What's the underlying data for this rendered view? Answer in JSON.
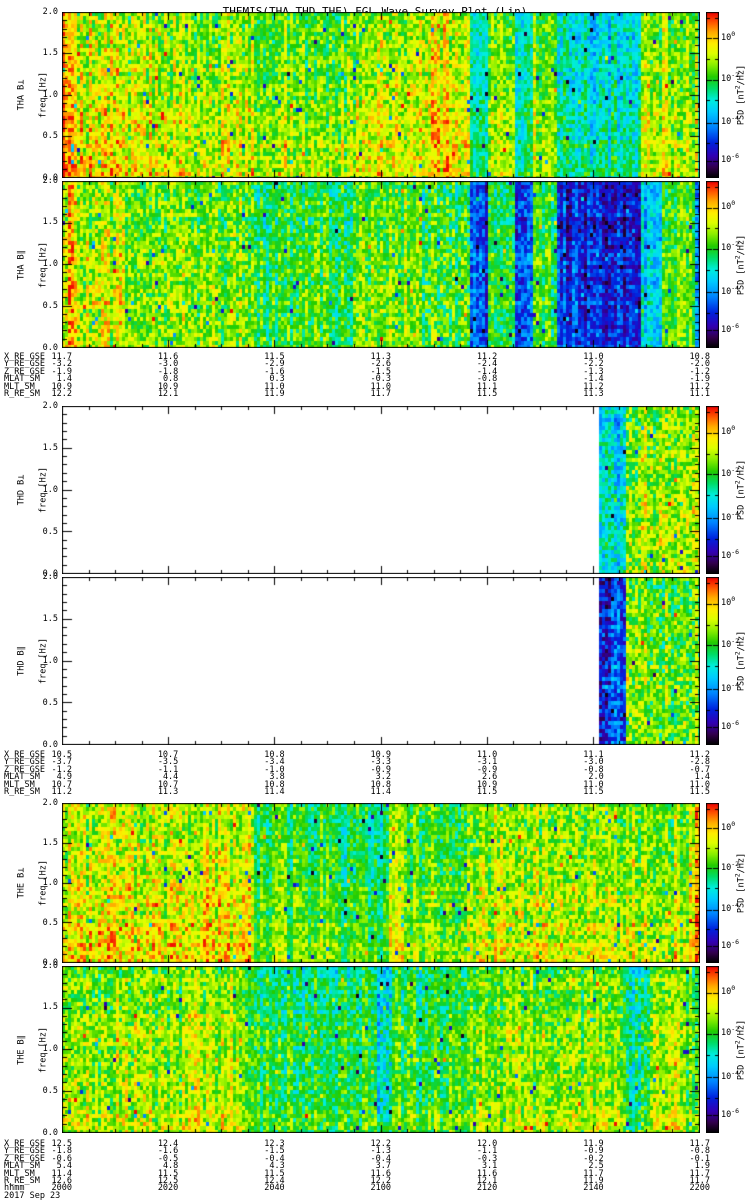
{
  "title": "THEMIS(THA,THD,THE) FGL Wave Survey Plot (Lin)",
  "freq_axis": {
    "label": "freq [Hz]",
    "tick_labels": [
      "2.0",
      "1.5",
      "1.0",
      "0.5",
      "0.0"
    ]
  },
  "colorbar": {
    "label_prefix": "PSD [nT",
    "label_sup": "2",
    "label_suffix": "/Hz]",
    "ticks": [
      {
        "base": "10",
        "exp": "0",
        "frac": 0.16
      },
      {
        "base": "10",
        "exp": "-2",
        "frac": 0.41
      },
      {
        "base": "10",
        "exp": "-4",
        "frac": 0.67
      },
      {
        "base": "10",
        "exp": "-6",
        "frac": 0.9
      }
    ]
  },
  "colors": {
    "background": "#ffffff",
    "frame": "#000000",
    "colormap_stops": [
      [
        0.0,
        "#000000"
      ],
      [
        0.06,
        "#32004b"
      ],
      [
        0.13,
        "#3200b4"
      ],
      [
        0.21,
        "#0022dd"
      ],
      [
        0.3,
        "#0080ff"
      ],
      [
        0.4,
        "#00ccff"
      ],
      [
        0.47,
        "#00eedd"
      ],
      [
        0.54,
        "#00dd66"
      ],
      [
        0.61,
        "#22cc00"
      ],
      [
        0.68,
        "#88ee00"
      ],
      [
        0.75,
        "#ddff00"
      ],
      [
        0.81,
        "#ffee00"
      ],
      [
        0.88,
        "#ffaa00"
      ],
      [
        0.94,
        "#ff5500"
      ],
      [
        1.0,
        "#ee0000"
      ]
    ]
  },
  "chart_data": {
    "type": "heatmap",
    "title": "THEMIS(THA,THD,THE) FGL Wave Survey Plot (Lin)",
    "ylabel": "freq [Hz]",
    "ylim": [
      0.0,
      2.0
    ],
    "yticks": [
      "0.0",
      "0.5",
      "1.0",
      "1.5",
      "2.0"
    ],
    "grid": false,
    "colorbar": {
      "label": "PSD [nT2/Hz]",
      "ticks": [
        "10^0",
        "10^-2",
        "10^-4",
        "10^-6"
      ],
      "orientation": "vertical-right"
    },
    "panels": [
      {
        "name": "THA B⊥",
        "features": "broadband yellow-green PSD ~10^-1 nT2/Hz over most of interval; red enhancements at start; cyan dropout bands near 2125, 2135 and a wide cyan low-PSD block 2130-2150 UT"
      },
      {
        "name": "THA B∥",
        "features": "similar structure with much deeper dropouts: dark-blue bands near 2125, 2135 and a deep blue block ~10^-5 nT2/Hz 2130-2155 UT"
      },
      {
        "name": "THD B⊥",
        "features": "no data (white) before ~2140 UT; cyan low-PSD column at data start, then yellow-green to orange PSD to 2200 UT"
      },
      {
        "name": "THD B∥",
        "features": "no data (white) before ~2140 UT; dark-blue low-PSD column at data start, then yellow-green PSD to 2200 UT"
      },
      {
        "name": "THE B⊥",
        "features": "high yellow-orange PSD with red streaks at start; greener/cyan interval 2040-2100 UT; orange-red enhancement at right edge"
      },
      {
        "name": "THE B∥",
        "features": "moderate yellow-green PSD; green-cyan interval 2040-2100 UT with brief blue streaks; blue dropouts near 2140 UT"
      }
    ],
    "x_axis": {
      "hhmm_ticks": [
        "2000",
        "2020",
        "2040",
        "2100",
        "2120",
        "2140",
        "2200"
      ],
      "date": "2017 Sep 23"
    },
    "ephemeris_blocks": [
      {
        "applies_to": [
          "THA B⊥",
          "THA B∥"
        ],
        "rows": [
          {
            "label": "X_RE_GSE",
            "values": [
              "11.7",
              "11.6",
              "11.5",
              "11.3",
              "11.2",
              "11.0",
              "10.8"
            ]
          },
          {
            "label": "Y_RE_GSE",
            "values": [
              "-3.2",
              "-3.0",
              "-2.9",
              "-2.6",
              "-2.4",
              "-2.2",
              "-2.0"
            ]
          },
          {
            "label": "Z_RE_GSE",
            "values": [
              "-1.9",
              "-1.8",
              "-1.6",
              "-1.5",
              "-1.4",
              "-1.3",
              "-1.2"
            ]
          },
          {
            "label": "MLAT_SM",
            "values": [
              "1.4",
              "0.8",
              "0.3",
              "-0.3",
              "-0.8",
              "-1.4",
              "-1.9"
            ]
          },
          {
            "label": "MLT_SM",
            "values": [
              "10.9",
              "10.9",
              "11.0",
              "11.0",
              "11.1",
              "11.2",
              "11.2"
            ]
          },
          {
            "label": "R_RE_SM",
            "values": [
              "12.2",
              "12.1",
              "11.9",
              "11.7",
              "11.5",
              "11.3",
              "11.1"
            ]
          }
        ]
      },
      {
        "applies_to": [
          "THD B⊥",
          "THD B∥"
        ],
        "rows": [
          {
            "label": "X_RE_GSE",
            "values": [
              "10.5",
              "10.7",
              "10.8",
              "10.9",
              "11.0",
              "11.1",
              "11.2"
            ]
          },
          {
            "label": "Y_RE_GSE",
            "values": [
              "-3.7",
              "-3.5",
              "-3.4",
              "-3.3",
              "-3.1",
              "-3.0",
              "-2.8"
            ]
          },
          {
            "label": "Z_RE_GSE",
            "values": [
              "-1.2",
              "-1.1",
              "-1.0",
              "-0.9",
              "-0.9",
              "-0.8",
              "-0.7"
            ]
          },
          {
            "label": "MLAT_SM",
            "values": [
              "4.9",
              "4.4",
              "3.8",
              "3.2",
              "2.6",
              "2.0",
              "1.4"
            ]
          },
          {
            "label": "MLT_SM",
            "values": [
              "10.7",
              "10.7",
              "10.8",
              "10.8",
              "10.9",
              "11.0",
              "11.0"
            ]
          },
          {
            "label": "R_RE_SM",
            "values": [
              "11.2",
              "11.3",
              "11.4",
              "11.4",
              "11.5",
              "11.5",
              "11.5"
            ]
          }
        ]
      },
      {
        "applies_to": [
          "THE B⊥",
          "THE B∥"
        ],
        "rows": [
          {
            "label": "X_RE_GSE",
            "values": [
              "12.5",
              "12.4",
              "12.3",
              "12.2",
              "12.0",
              "11.9",
              "11.7"
            ]
          },
          {
            "label": "Y_RE_GSE",
            "values": [
              "-1.8",
              "-1.6",
              "-1.5",
              "-1.3",
              "-1.1",
              "-0.9",
              "-0.8"
            ]
          },
          {
            "label": "Z_RE_GSE",
            "values": [
              "-0.6",
              "-0.5",
              "-0.4",
              "-0.4",
              "-0.3",
              "-0.2",
              "-0.1"
            ]
          },
          {
            "label": "MLAT_SM",
            "values": [
              "5.4",
              "4.8",
              "4.3",
              "3.7",
              "3.1",
              "2.5",
              "1.9"
            ]
          },
          {
            "label": "MLT_SM",
            "values": [
              "11.4",
              "11.5",
              "11.5",
              "11.6",
              "11.6",
              "11.7",
              "11.7"
            ]
          },
          {
            "label": "R_RE_SM",
            "values": [
              "12.6",
              "12.5",
              "12.4",
              "12.2",
              "12.1",
              "11.9",
              "11.7"
            ]
          },
          {
            "label": "hhmm",
            "values": [
              "2000",
              "2020",
              "2040",
              "2100",
              "2120",
              "2140",
              "2200"
            ]
          }
        ],
        "date_label": "2017 Sep 23"
      }
    ]
  },
  "texture": {
    "panels": [
      {
        "seed": 11,
        "vgrad": 0.1,
        "data_start": 0,
        "bands": [
          [
            0,
            0.022,
            0.9,
            0.1
          ],
          [
            0.022,
            0.095,
            0.76,
            0.15
          ],
          [
            0.095,
            0.3,
            0.72,
            0.13
          ],
          [
            0.3,
            0.46,
            0.67,
            0.12
          ],
          [
            0.46,
            0.56,
            0.73,
            0.13
          ],
          [
            0.56,
            0.636,
            0.79,
            0.14
          ],
          [
            0.636,
            0.666,
            0.47,
            0.09
          ],
          [
            0.666,
            0.705,
            0.72,
            0.11
          ],
          [
            0.705,
            0.737,
            0.5,
            0.09
          ],
          [
            0.737,
            0.774,
            0.7,
            0.11
          ],
          [
            0.774,
            0.906,
            0.46,
            0.11
          ],
          [
            0.906,
            0.992,
            0.7,
            0.12
          ],
          [
            0.992,
            1,
            0.5,
            0.08
          ]
        ]
      },
      {
        "seed": 22,
        "vgrad": 0.06,
        "data_start": 0,
        "bands": [
          [
            0,
            0.022,
            0.82,
            0.16
          ],
          [
            0.022,
            0.095,
            0.72,
            0.14
          ],
          [
            0.095,
            0.3,
            0.68,
            0.13
          ],
          [
            0.3,
            0.46,
            0.6,
            0.12
          ],
          [
            0.46,
            0.56,
            0.66,
            0.12
          ],
          [
            0.56,
            0.636,
            0.64,
            0.14
          ],
          [
            0.636,
            0.666,
            0.26,
            0.1
          ],
          [
            0.666,
            0.705,
            0.6,
            0.11
          ],
          [
            0.705,
            0.737,
            0.27,
            0.1
          ],
          [
            0.737,
            0.774,
            0.6,
            0.11
          ],
          [
            0.774,
            0.905,
            0.22,
            0.1
          ],
          [
            0.905,
            0.935,
            0.4,
            0.1
          ],
          [
            0.935,
            0.99,
            0.65,
            0.11
          ],
          [
            0.99,
            1,
            0.35,
            0.1
          ]
        ]
      },
      {
        "seed": 33,
        "vgrad": 0.05,
        "data_start": 0.84,
        "bands": [
          [
            0.84,
            0.878,
            0.46,
            0.12
          ],
          [
            0.878,
            1,
            0.7,
            0.14
          ]
        ]
      },
      {
        "seed": 44,
        "vgrad": 0.05,
        "data_start": 0.84,
        "bands": [
          [
            0.84,
            0.878,
            0.25,
            0.12
          ],
          [
            0.878,
            1,
            0.66,
            0.14
          ]
        ]
      },
      {
        "seed": 55,
        "vgrad": 0.1,
        "data_start": 0,
        "bands": [
          [
            0,
            0.19,
            0.76,
            0.14
          ],
          [
            0.19,
            0.3,
            0.77,
            0.12
          ],
          [
            0.3,
            0.42,
            0.62,
            0.1
          ],
          [
            0.42,
            0.51,
            0.58,
            0.1
          ],
          [
            0.51,
            0.535,
            0.76,
            0.1
          ],
          [
            0.535,
            0.63,
            0.64,
            0.11
          ],
          [
            0.63,
            0.98,
            0.71,
            0.13
          ],
          [
            0.98,
            1,
            0.84,
            0.12
          ]
        ]
      },
      {
        "seed": 66,
        "vgrad": 0.07,
        "data_start": 0,
        "bands": [
          [
            0,
            0.19,
            0.7,
            0.13
          ],
          [
            0.19,
            0.28,
            0.72,
            0.12
          ],
          [
            0.28,
            0.49,
            0.58,
            0.11
          ],
          [
            0.49,
            0.515,
            0.44,
            0.12
          ],
          [
            0.515,
            0.63,
            0.6,
            0.11
          ],
          [
            0.63,
            0.88,
            0.67,
            0.12
          ],
          [
            0.88,
            0.92,
            0.52,
            0.13
          ],
          [
            0.92,
            1,
            0.68,
            0.12
          ]
        ]
      }
    ]
  }
}
